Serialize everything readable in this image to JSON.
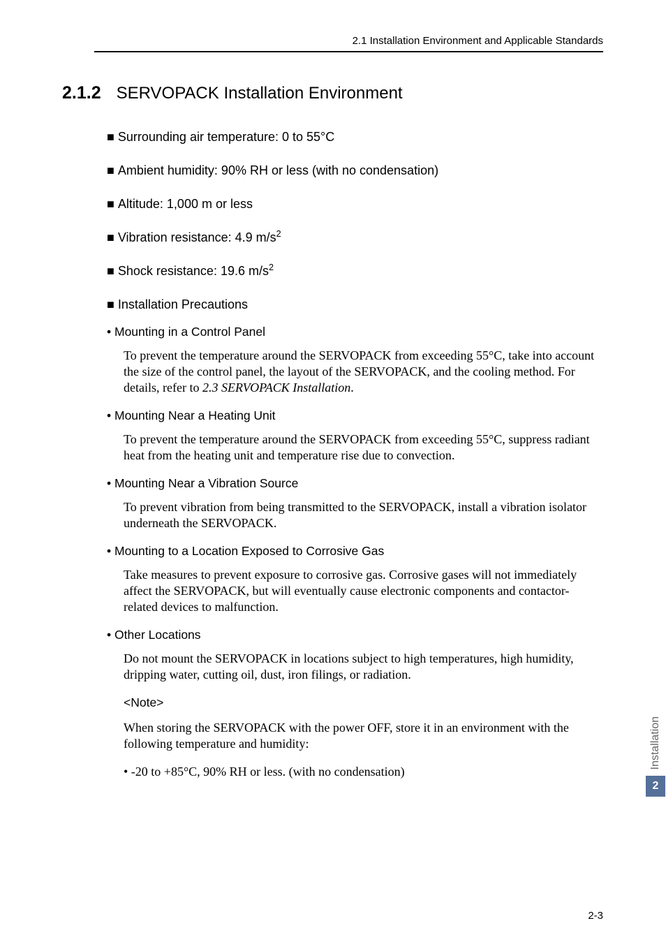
{
  "header": {
    "running": "2.1  Installation Environment and Applicable Standards"
  },
  "section": {
    "number": "2.1.2",
    "title": "SERVOPACK Installation Environment"
  },
  "specs": [
    {
      "label": "Surrounding air temperature: 0 to 55°C",
      "sup": ""
    },
    {
      "label": "Ambient humidity: 90% RH or less (with no condensation)",
      "sup": ""
    },
    {
      "label": "Altitude: 1,000 m or less",
      "sup": ""
    },
    {
      "label": "Vibration resistance: 4.9 m/s",
      "sup": "2"
    },
    {
      "label": "Shock resistance: 19.6 m/s",
      "sup": "2"
    }
  ],
  "precautions_heading": "Installation Precautions",
  "precautions": [
    {
      "title": "Mounting in a Control Panel",
      "body_pre": "To prevent the temperature around the SERVOPACK from exceeding 55°C, take into account the size of the control panel, the layout of the SERVOPACK, and the cooling method. For details, refer to ",
      "body_italic": "2.3  SERVOPACK Installation",
      "body_post": "."
    },
    {
      "title": "Mounting Near a Heating Unit",
      "body_pre": "To prevent the temperature around the SERVOPACK from exceeding 55°C, suppress radiant heat from the heating unit and temperature rise due to convection.",
      "body_italic": "",
      "body_post": ""
    },
    {
      "title": "Mounting Near a Vibration Source",
      "body_pre": "To prevent vibration from being transmitted to the SERVOPACK, install a vibration isolator underneath the SERVOPACK.",
      "body_italic": "",
      "body_post": ""
    },
    {
      "title": "Mounting to a Location Exposed to Corrosive Gas",
      "body_pre": "Take measures to prevent exposure to corrosive gas. Corrosive gases will not immediately affect the SERVOPACK, but will eventually cause electronic components and contactor-related devices to malfunction.",
      "body_italic": "",
      "body_post": ""
    },
    {
      "title": "Other Locations",
      "body_pre": "Do not mount the SERVOPACK in locations subject to high temperatures, high humidity, dripping water, cutting oil, dust, iron filings, or radiation.",
      "body_italic": "",
      "body_post": ""
    }
  ],
  "note": {
    "label": "<Note>",
    "body": "When storing the SERVOPACK with the power OFF, store it in an environment with the following temperature and humidity:",
    "storage": "•  -20 to +85°C, 90% RH or less. (with no condensation)"
  },
  "sidetab": {
    "label": "Installation",
    "chapter": "2"
  },
  "footer": {
    "page": "2-3"
  },
  "colors": {
    "tab_bg": "#557099",
    "tab_text_muted": "#666666"
  }
}
